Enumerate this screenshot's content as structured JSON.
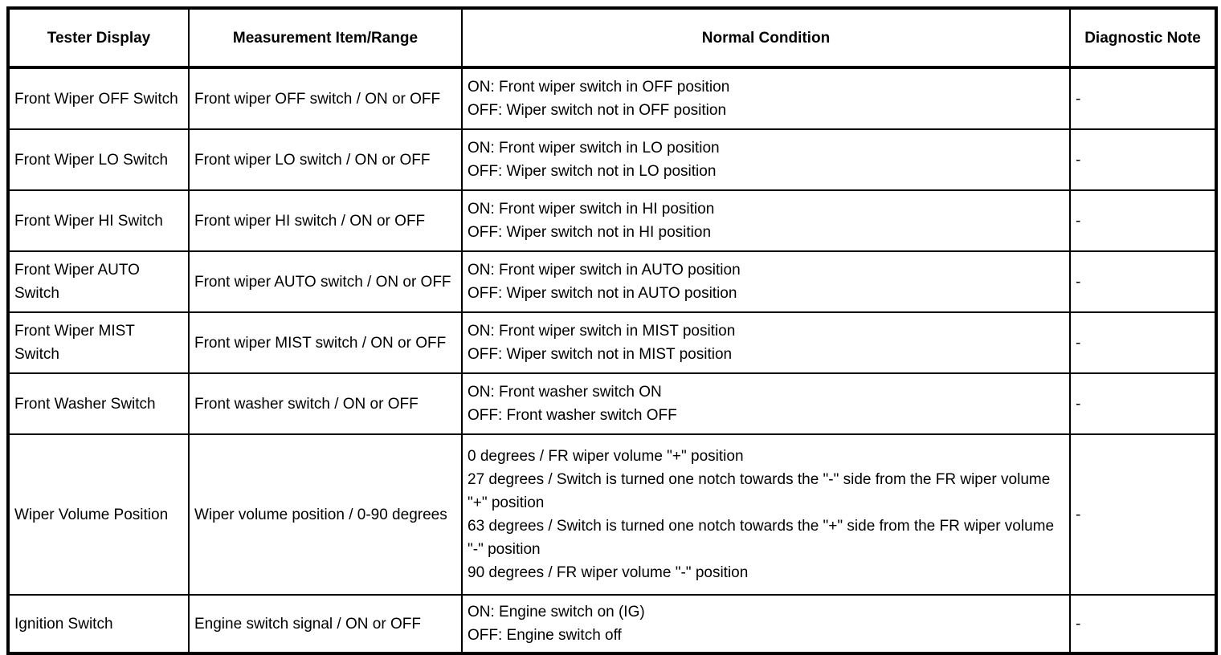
{
  "table": {
    "headers": {
      "tester_display": "Tester Display",
      "measurement": "Measurement Item/Range",
      "normal_condition": "Normal Condition",
      "diagnostic_note": "Diagnostic Note"
    },
    "rows": [
      {
        "tester_display": "Front Wiper OFF Switch",
        "measurement": "Front wiper OFF switch / ON or OFF",
        "normal_condition": "ON: Front wiper switch in OFF position\nOFF: Wiper switch not in OFF position",
        "diagnostic_note": "-"
      },
      {
        "tester_display": "Front Wiper LO Switch",
        "measurement": "Front wiper LO switch / ON or OFF",
        "normal_condition": "ON: Front wiper switch in LO position\nOFF: Wiper switch not in LO position",
        "diagnostic_note": "-"
      },
      {
        "tester_display": "Front Wiper HI Switch",
        "measurement": "Front wiper HI switch / ON or OFF",
        "normal_condition": "ON: Front wiper switch in HI position\nOFF: Wiper switch not in HI position",
        "diagnostic_note": "-"
      },
      {
        "tester_display": "Front Wiper AUTO Switch",
        "measurement": "Front wiper AUTO switch / ON or OFF",
        "normal_condition": "ON: Front wiper switch in AUTO position\nOFF: Wiper switch not in AUTO position",
        "diagnostic_note": "-"
      },
      {
        "tester_display": "Front Wiper MIST Switch",
        "measurement": "Front wiper MIST switch / ON or OFF",
        "normal_condition": "ON: Front wiper switch in MIST position\nOFF: Wiper switch not in MIST position",
        "diagnostic_note": "-"
      },
      {
        "tester_display": "Front Washer Switch",
        "measurement": "Front washer switch / ON or OFF",
        "normal_condition": "ON: Front washer switch ON\nOFF: Front washer switch OFF",
        "diagnostic_note": "-"
      },
      {
        "tester_display": "Wiper Volume Position",
        "measurement": "Wiper volume position / 0-90 degrees",
        "normal_condition": "0 degrees / FR wiper volume \"+\" position\n27 degrees / Switch is turned one notch towards the \"-\" side from the FR wiper volume \"+\" position\n63 degrees / Switch is turned one notch towards the \"+\" side from the FR wiper volume \"-\" position\n90 degrees / FR wiper volume \"-\" position",
        "diagnostic_note": "-"
      },
      {
        "tester_display": "Ignition Switch",
        "measurement": "Engine switch signal / ON or OFF",
        "normal_condition": "ON: Engine switch on (IG)\nOFF: Engine switch off",
        "diagnostic_note": "-"
      }
    ]
  }
}
